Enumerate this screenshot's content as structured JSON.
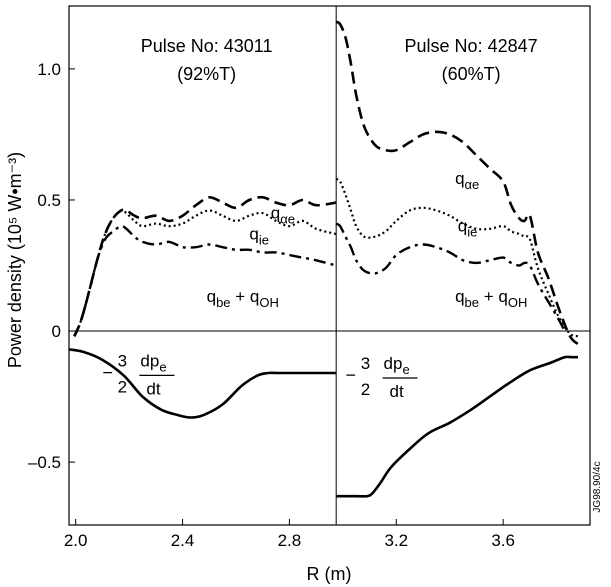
{
  "chart_data": {
    "type": "line",
    "xlabel": "R (m)",
    "ylabel": "Power density (10⁵ W•m⁻³)",
    "watermark": "JG98.90/4c",
    "xlim": [
      1.975,
      3.925
    ],
    "ylim": [
      -0.74,
      1.24
    ],
    "x_ticks": [
      {
        "value": 2.0,
        "label": "2.0"
      },
      {
        "value": 2.4,
        "label": "2.4"
      },
      {
        "value": 2.8,
        "label": "2.8"
      },
      {
        "value": 3.2,
        "label": "3.2"
      },
      {
        "value": 3.6,
        "label": "3.6"
      }
    ],
    "y_ticks": [
      {
        "value": 1.0,
        "label": "1.0"
      },
      {
        "value": 0.5,
        "label": "0.5"
      },
      {
        "value": 0.0,
        "label": "0"
      },
      {
        "value": -0.5,
        "label": "–0.5"
      }
    ],
    "panel_divider_x": 2.975,
    "panels": [
      {
        "title_line1": "Pulse No: 43011",
        "title_line2": "(92%T)",
        "series": [
          {
            "name": "qαe",
            "style": "dashed",
            "x": [
              1.995,
              2.02,
              2.05,
              2.08,
              2.11,
              2.14,
              2.17,
              2.19,
              2.22,
              2.25,
              2.3,
              2.35,
              2.4,
              2.45,
              2.5,
              2.55,
              2.6,
              2.65,
              2.7,
              2.75,
              2.8,
              2.85,
              2.9,
              2.975
            ],
            "y": [
              -0.02,
              0.04,
              0.15,
              0.27,
              0.37,
              0.43,
              0.46,
              0.46,
              0.44,
              0.43,
              0.44,
              0.42,
              0.44,
              0.48,
              0.51,
              0.49,
              0.47,
              0.5,
              0.51,
              0.49,
              0.48,
              0.5,
              0.48,
              0.49
            ]
          },
          {
            "name": "qie",
            "style": "dotted",
            "x": [
              1.995,
              2.02,
              2.05,
              2.08,
              2.11,
              2.14,
              2.17,
              2.19,
              2.22,
              2.25,
              2.3,
              2.35,
              2.4,
              2.45,
              2.5,
              2.55,
              2.6,
              2.65,
              2.7,
              2.75,
              2.8,
              2.85,
              2.9,
              2.975
            ],
            "y": [
              -0.02,
              0.04,
              0.15,
              0.27,
              0.37,
              0.43,
              0.46,
              0.45,
              0.42,
              0.4,
              0.41,
              0.4,
              0.41,
              0.44,
              0.46,
              0.44,
              0.42,
              0.44,
              0.45,
              0.42,
              0.4,
              0.42,
              0.39,
              0.37
            ]
          },
          {
            "name": "qbe + qOH",
            "style": "dashdot",
            "x": [
              1.995,
              2.02,
              2.05,
              2.08,
              2.11,
              2.14,
              2.17,
              2.19,
              2.22,
              2.25,
              2.3,
              2.35,
              2.4,
              2.45,
              2.5,
              2.55,
              2.6,
              2.65,
              2.7,
              2.75,
              2.8,
              2.85,
              2.9,
              2.975
            ],
            "y": [
              -0.02,
              0.04,
              0.15,
              0.27,
              0.35,
              0.38,
              0.4,
              0.39,
              0.36,
              0.34,
              0.33,
              0.34,
              0.32,
              0.32,
              0.33,
              0.32,
              0.31,
              0.31,
              0.3,
              0.3,
              0.29,
              0.28,
              0.27,
              0.25
            ]
          },
          {
            "name": "−3/2 dpe/dt",
            "style": "solid",
            "x": [
              1.975,
              2.03,
              2.1,
              2.18,
              2.25,
              2.32,
              2.38,
              2.43,
              2.48,
              2.55,
              2.62,
              2.68,
              2.72,
              2.76,
              2.8,
              2.85,
              2.9,
              2.975
            ],
            "y": [
              -0.07,
              -0.08,
              -0.11,
              -0.17,
              -0.25,
              -0.3,
              -0.32,
              -0.33,
              -0.32,
              -0.28,
              -0.21,
              -0.17,
              -0.16,
              -0.16,
              -0.16,
              -0.16,
              -0.16,
              -0.16
            ]
          }
        ],
        "labels": [
          {
            "key": "qae",
            "base": "q",
            "sub": "αe",
            "x": 2.73,
            "y": 0.43
          },
          {
            "key": "qie",
            "base": "q",
            "sub": "ie",
            "x": 2.65,
            "y": 0.35
          },
          {
            "key": "qbeqoh",
            "base": "q",
            "sub": "be",
            "plus": " + ",
            "base2": "q",
            "sub2": "OH",
            "x": 2.49,
            "y": 0.11
          },
          {
            "key": "dpdt",
            "sign": "−",
            "num": "3",
            "den": "2",
            "top": "dp",
            "topsub": "e",
            "bottom": "dt",
            "x": 2.1,
            "y": -0.15
          }
        ]
      },
      {
        "title_line1": "Pulse No: 42847",
        "title_line2": "(60%T)",
        "series": [
          {
            "name": "qαe",
            "style": "dashed",
            "x": [
              2.975,
              2.99,
              3.01,
              3.03,
              3.05,
              3.08,
              3.12,
              3.16,
              3.2,
              3.25,
              3.3,
              3.35,
              3.4,
              3.45,
              3.5,
              3.55,
              3.6,
              3.63,
              3.66,
              3.68,
              3.7,
              3.73,
              3.77,
              3.81,
              3.85,
              3.88
            ],
            "y": [
              1.18,
              1.17,
              1.12,
              1.02,
              0.9,
              0.78,
              0.71,
              0.69,
              0.69,
              0.72,
              0.75,
              0.76,
              0.75,
              0.72,
              0.67,
              0.62,
              0.57,
              0.48,
              0.43,
              0.42,
              0.44,
              0.3,
              0.2,
              0.08,
              -0.02,
              -0.05
            ]
          },
          {
            "name": "qie",
            "style": "dotted",
            "x": [
              2.975,
              2.99,
              3.01,
              3.03,
              3.05,
              3.08,
              3.12,
              3.16,
              3.2,
              3.25,
              3.3,
              3.35,
              3.4,
              3.45,
              3.5,
              3.55,
              3.6,
              3.63,
              3.66,
              3.68,
              3.7,
              3.73,
              3.77,
              3.81,
              3.85,
              3.88
            ],
            "y": [
              0.58,
              0.57,
              0.52,
              0.46,
              0.4,
              0.36,
              0.36,
              0.38,
              0.42,
              0.46,
              0.47,
              0.46,
              0.44,
              0.41,
              0.39,
              0.39,
              0.4,
              0.38,
              0.37,
              0.36,
              0.35,
              0.24,
              0.14,
              0.05,
              -0.01,
              -0.02
            ]
          },
          {
            "name": "qbe + qOH",
            "style": "dashdot",
            "x": [
              2.975,
              2.99,
              3.01,
              3.03,
              3.05,
              3.08,
              3.12,
              3.16,
              3.2,
              3.25,
              3.3,
              3.35,
              3.4,
              3.45,
              3.5,
              3.55,
              3.6,
              3.63,
              3.66,
              3.68,
              3.7,
              3.73,
              3.77,
              3.81,
              3.83
            ],
            "y": [
              0.41,
              0.4,
              0.36,
              0.32,
              0.27,
              0.23,
              0.22,
              0.24,
              0.29,
              0.32,
              0.33,
              0.32,
              0.3,
              0.27,
              0.26,
              0.27,
              0.28,
              0.26,
              0.25,
              0.26,
              0.25,
              0.18,
              0.11,
              0.04,
              0.0
            ]
          },
          {
            "name": "−3/2 dpe/dt",
            "style": "solid",
            "x": [
              2.975,
              3.05,
              3.09,
              3.11,
              3.14,
              3.18,
              3.25,
              3.32,
              3.4,
              3.48,
              3.55,
              3.62,
              3.7,
              3.78,
              3.83,
              3.86,
              3.88
            ],
            "y": [
              -0.63,
              -0.63,
              -0.63,
              -0.62,
              -0.58,
              -0.52,
              -0.45,
              -0.39,
              -0.35,
              -0.3,
              -0.25,
              -0.2,
              -0.15,
              -0.12,
              -0.1,
              -0.1,
              -0.1
            ]
          }
        ],
        "labels": [
          {
            "key": "qae",
            "base": "q",
            "sub": "αe",
            "x": 3.42,
            "y": 0.56
          },
          {
            "key": "qie",
            "base": "q",
            "sub": "ie",
            "x": 3.43,
            "y": 0.38
          },
          {
            "key": "qbeqoh",
            "base": "q",
            "sub": "be",
            "plus": " + ",
            "base2": "q",
            "sub2": "OH",
            "x": 3.42,
            "y": 0.11
          },
          {
            "key": "dpdt",
            "sign": "−",
            "num": "3",
            "den": "2",
            "top": "dp",
            "topsub": "e",
            "bottom": "dt",
            "x": 3.01,
            "y": -0.16
          }
        ]
      }
    ]
  }
}
